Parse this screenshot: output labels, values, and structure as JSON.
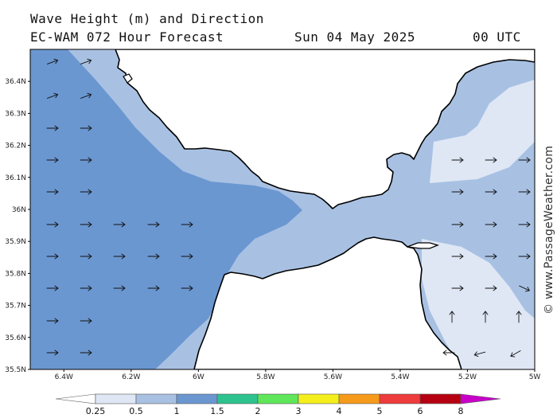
{
  "header": {
    "line1": "Wave Height (m) and Direction",
    "line2": "EC-WAM 072 Hour Forecast",
    "date": "Sun 04 May 2025",
    "time": "00 UTC"
  },
  "credit": "© www.PassageWeather.com",
  "axes": {
    "lat_labels": [
      "36.4N",
      "36.3N",
      "36.2N",
      "36.1N",
      "36N",
      "35.9N",
      "35.8N",
      "35.7N",
      "35.6N",
      "35.5N"
    ],
    "lon_labels": [
      "6.4W",
      "6.2W",
      "6W",
      "5.8W",
      "5.6W",
      "5.4W",
      "5.2W",
      "5W"
    ],
    "lat_range": [
      35.5,
      36.5
    ],
    "lon_range": [
      -6.5,
      -5.0
    ]
  },
  "legend": {
    "labels": [
      "0.25",
      "0.5",
      "1",
      "1.5",
      "2",
      "3",
      "4",
      "5",
      "6",
      "8"
    ],
    "colors": [
      "#ffffff",
      "#dfe7f5",
      "#a8c1e3",
      "#6b97d1",
      "#2ec28e",
      "#5fe65a",
      "#f5ee1d",
      "#f59a1b",
      "#ee3b3b",
      "#b60012",
      "#c800c8"
    ]
  },
  "colors": {
    "land": "#ffffff",
    "wave_low": "#dfe7f5",
    "wave_mid": "#a8c1e3",
    "wave_high": "#6b97d1",
    "coast": "#000000"
  },
  "wind_arrows_deg": {
    "atlantic": 70,
    "strait": 90,
    "med_south": 115,
    "med_southwest": 210,
    "med_north": 0
  }
}
